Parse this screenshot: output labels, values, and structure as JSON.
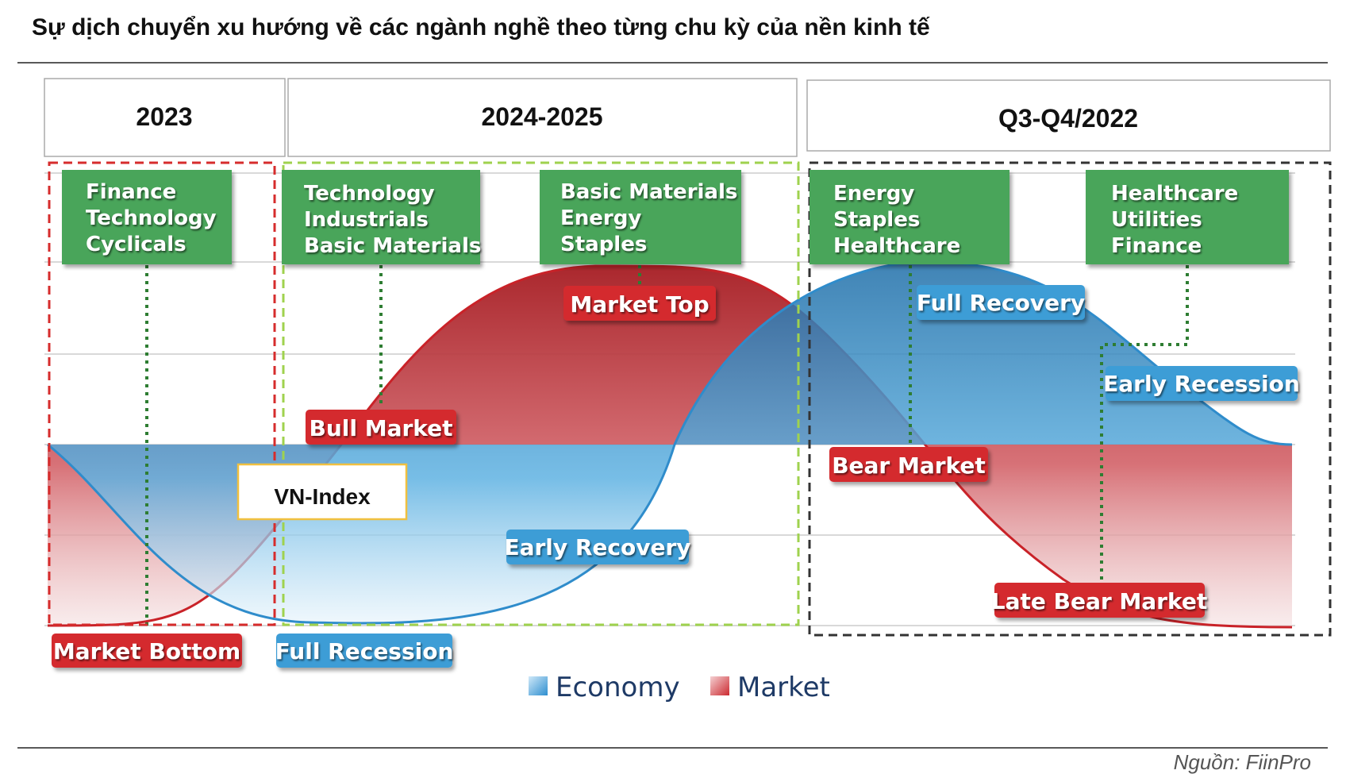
{
  "title": "Sự dịch chuyển xu hướng về các ngành nghề theo từng chu kỳ của nền kinh tế",
  "periods": [
    "2023",
    "2024-2025",
    "Q3-Q4/2022"
  ],
  "sector_groups": [
    [
      "Finance",
      "Technology",
      "Cyclicals"
    ],
    [
      "Technology",
      "Industrials",
      "Basic Materials"
    ],
    [
      "Basic Materials",
      "Energy",
      "Staples"
    ],
    [
      "Energy",
      "Staples",
      "Healthcare"
    ],
    [
      "Healthcare",
      "Utilities",
      "Finance"
    ]
  ],
  "market_labels": {
    "market_bottom": "Market Bottom",
    "bull_market": "Bull Market",
    "market_top": "Market Top",
    "bear_market": "Bear Market",
    "late_bear_market": "Late Bear Market"
  },
  "economy_labels": {
    "full_recession": "Full Recession",
    "early_recovery": "Early Recovery",
    "full_recovery": "Full Recovery",
    "early_recession": "Early Recession"
  },
  "marker_label": "VN-Index",
  "legend": {
    "economy": "Economy",
    "market": "Market"
  },
  "source": "Nguồn: FiinPro",
  "colors": {
    "market_red": "#d42a2e",
    "economy_blue": "#3e9dd6",
    "sector_green": "#4aa55a",
    "period_2023": "#d62c2c",
    "period_2024": "#9fd24e",
    "period_2022": "#333333",
    "vnindex_border": "#f0c040"
  }
}
